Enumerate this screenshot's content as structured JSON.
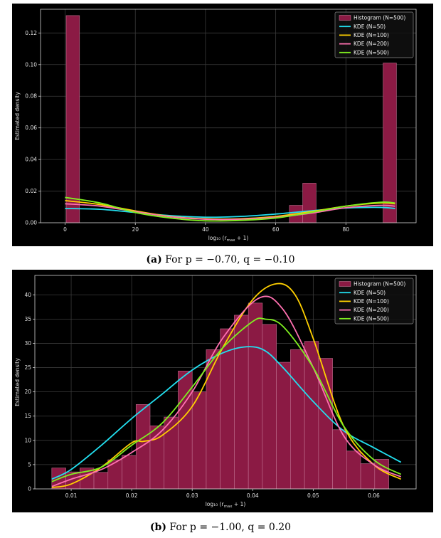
{
  "captions": [
    {
      "label": "(a)",
      "text": " For p = −0.70, q = −0.10"
    },
    {
      "label": "(b)",
      "text": " For p = −1.00, q = 0.20"
    }
  ],
  "colors": {
    "hist_fill": "#8b1a44",
    "hist_edge": "#c07090",
    "kde50": "#22e0f0",
    "kde100": "#ffd000",
    "kde200": "#ff70b0",
    "kde500": "#80f020",
    "grid": "#3a3a3a"
  },
  "chart_data": [
    {
      "type": "bar",
      "xlabel": "log₁₀ (r_max + 1)",
      "ylabel": "Estimated density",
      "xlim": [
        -7,
        100
      ],
      "ylim": [
        0,
        0.135
      ],
      "xticks": [
        0,
        20,
        40,
        60,
        80
      ],
      "yticks": [
        0.0,
        0.02,
        0.04,
        0.06,
        0.08,
        0.1,
        0.12
      ],
      "ytick_labels": [
        "0.00",
        "0.02",
        "0.04",
        "0.06",
        "0.08",
        "0.10",
        "0.12"
      ],
      "grid": true,
      "legend_position": "top-right",
      "histogram": {
        "name": "Histogram (N=500)",
        "bins": [
          {
            "x0": 0.3,
            "x1": 4.1,
            "value": 0.131
          },
          {
            "x0": 63.9,
            "x1": 67.7,
            "value": 0.011
          },
          {
            "x0": 67.7,
            "x1": 71.5,
            "value": 0.025
          },
          {
            "x0": 90.6,
            "x1": 94.4,
            "value": 0.101
          }
        ]
      },
      "series": [
        {
          "name": "KDE (N=50)",
          "x": [
            0,
            10,
            20,
            30,
            40,
            50,
            60,
            70,
            80,
            90,
            94
          ],
          "values": [
            0.009,
            0.0085,
            0.0065,
            0.0045,
            0.0035,
            0.004,
            0.0055,
            0.0075,
            0.0093,
            0.0097,
            0.009
          ]
        },
        {
          "name": "KDE (N=100)",
          "x": [
            0,
            10,
            20,
            30,
            40,
            50,
            60,
            70,
            80,
            90,
            94
          ],
          "values": [
            0.014,
            0.0115,
            0.0075,
            0.004,
            0.0025,
            0.0025,
            0.004,
            0.007,
            0.0105,
            0.0125,
            0.012
          ]
        },
        {
          "name": "KDE (N=200)",
          "x": [
            0,
            10,
            20,
            30,
            40,
            50,
            60,
            70,
            80,
            90,
            94
          ],
          "values": [
            0.012,
            0.0105,
            0.007,
            0.0038,
            0.0022,
            0.0022,
            0.0035,
            0.006,
            0.0095,
            0.011,
            0.0105
          ]
        },
        {
          "name": "KDE (N=500)",
          "x": [
            0,
            10,
            20,
            30,
            40,
            50,
            60,
            70,
            80,
            90,
            94
          ],
          "values": [
            0.016,
            0.0125,
            0.0065,
            0.003,
            0.0012,
            0.0015,
            0.003,
            0.0065,
            0.0105,
            0.013,
            0.0125
          ]
        }
      ]
    },
    {
      "type": "bar",
      "xlabel": "log₁₀ (r_max + 1)",
      "ylabel": "Estimated density",
      "xlim": [
        0.004,
        0.067
      ],
      "ylim": [
        0,
        44
      ],
      "xticks": [
        0.01,
        0.02,
        0.03,
        0.04,
        0.05,
        0.06
      ],
      "xtick_labels": [
        "0.01",
        "0.02",
        "0.03",
        "0.04",
        "0.05",
        "0.06"
      ],
      "yticks": [
        0,
        5,
        10,
        15,
        20,
        25,
        30,
        35,
        40
      ],
      "grid": true,
      "legend_position": "top-right",
      "histogram": {
        "name": "Histogram (N=500)",
        "bin_start": 0.0068,
        "bin_width": 0.00232,
        "values": [
          4.3,
          3.5,
          4.3,
          3.4,
          6.0,
          6.9,
          17.4,
          13.0,
          14.8,
          24.3,
          20.0,
          28.7,
          33.0,
          35.8,
          38.3,
          33.9,
          26.1,
          28.7,
          30.4,
          26.9,
          12.2,
          7.8,
          5.2,
          6.1
        ]
      },
      "series": [
        {
          "name": "KDE (N=50)",
          "x": [
            0.0068,
            0.01,
            0.015,
            0.02,
            0.025,
            0.03,
            0.035,
            0.039,
            0.042,
            0.045,
            0.05,
            0.055,
            0.06,
            0.0645
          ],
          "values": [
            2.0,
            4.0,
            9.0,
            14.5,
            19.5,
            24.5,
            28.0,
            29.3,
            28.5,
            25.0,
            18.0,
            12.0,
            8.5,
            5.5
          ]
        },
        {
          "name": "KDE (N=100)",
          "x": [
            0.0068,
            0.01,
            0.015,
            0.02,
            0.022,
            0.025,
            0.03,
            0.035,
            0.04,
            0.044,
            0.047,
            0.05,
            0.055,
            0.06,
            0.0645
          ],
          "values": [
            0.3,
            1.0,
            4.5,
            9.5,
            9.8,
            11.0,
            17.0,
            29.0,
            39.0,
            42.3,
            40.0,
            31.0,
            13.0,
            5.0,
            2.0
          ]
        },
        {
          "name": "KDE (N=200)",
          "x": [
            0.0068,
            0.01,
            0.015,
            0.02,
            0.025,
            0.03,
            0.035,
            0.041,
            0.045,
            0.05,
            0.055,
            0.06,
            0.0645
          ],
          "values": [
            0.5,
            2.0,
            4.0,
            7.5,
            12.0,
            20.0,
            31.0,
            39.3,
            37.0,
            25.0,
            11.0,
            5.0,
            2.5
          ]
        },
        {
          "name": "KDE (N=500)",
          "x": [
            0.0068,
            0.01,
            0.015,
            0.02,
            0.025,
            0.03,
            0.035,
            0.04,
            0.042,
            0.045,
            0.05,
            0.055,
            0.06,
            0.0645
          ],
          "values": [
            1.5,
            3.0,
            4.5,
            9.0,
            13.5,
            21.0,
            29.0,
            34.5,
            35.0,
            33.5,
            25.0,
            13.0,
            6.0,
            3.0
          ]
        }
      ]
    }
  ]
}
